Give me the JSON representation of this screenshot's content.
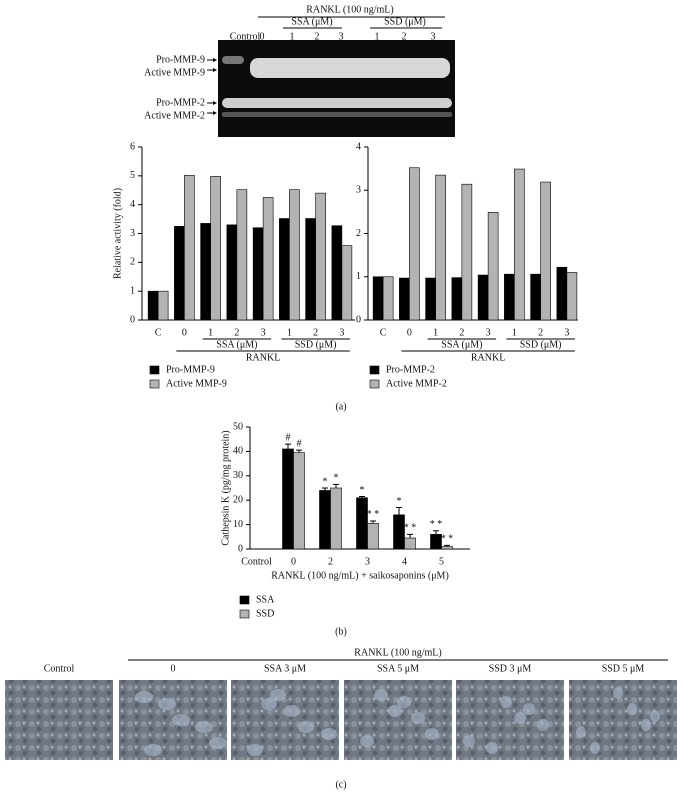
{
  "gel": {
    "title": "RANKL (100 ng/mL)",
    "control": "Control",
    "zero": "0",
    "ssa": "SSA (μM)",
    "ssd": "SSD (μM)",
    "ssa_doses": [
      "1",
      "2",
      "3"
    ],
    "ssd_doses": [
      "1",
      "2",
      "3"
    ],
    "bands": [
      "Pro-MMP-9",
      "Active MMP-9",
      "Pro-MMP-2",
      "Active MMP-2"
    ]
  },
  "chart_data": [
    {
      "type": "bar",
      "y_label": "Relative activity (fold)",
      "categories": [
        "C",
        "0",
        "1",
        "2",
        "3",
        "1",
        "2",
        "3"
      ],
      "group_labels": [
        "SSA (μM)",
        "SSD (μM)"
      ],
      "span_label": "RANKL",
      "ylim": [
        0,
        6
      ],
      "yticks": [
        0,
        1,
        2,
        3,
        4,
        5,
        6
      ],
      "series": [
        {
          "name": "Pro-MMP-9",
          "color": "#000000",
          "values": [
            1.0,
            3.25,
            3.35,
            3.3,
            3.2,
            3.52,
            3.52,
            3.27
          ]
        },
        {
          "name": "Active MMP-9",
          "color": "#b3b3b3",
          "values": [
            1.0,
            5.02,
            4.98,
            4.52,
            4.25,
            4.52,
            4.4,
            2.58
          ]
        }
      ]
    },
    {
      "type": "bar",
      "categories": [
        "C",
        "0",
        "1",
        "2",
        "3",
        "1",
        "2",
        "3"
      ],
      "group_labels": [
        "SSA (μM)",
        "SSD (μM)"
      ],
      "span_label": "RANKL",
      "ylim": [
        0,
        4
      ],
      "yticks": [
        0,
        1,
        2,
        3,
        4
      ],
      "series": [
        {
          "name": "Pro-MMP-2",
          "color": "#000000",
          "values": [
            1.0,
            0.97,
            0.97,
            0.98,
            1.04,
            1.06,
            1.06,
            1.22
          ]
        },
        {
          "name": "Active MMP-2",
          "color": "#b3b3b3",
          "values": [
            1.0,
            3.52,
            3.35,
            3.14,
            2.49,
            3.49,
            3.19,
            1.1
          ]
        }
      ]
    },
    {
      "type": "bar",
      "y_label": "Cathepsin K (pg/mg protein)",
      "x_label": "RANKL (100 ng/mL) + saikosaponins (μM)",
      "categories": [
        "Control",
        "0",
        "2",
        "3",
        "4",
        "5"
      ],
      "ylim": [
        0,
        50
      ],
      "yticks": [
        0,
        10,
        20,
        30,
        40,
        50
      ],
      "series": [
        {
          "name": "SSA",
          "color": "#000000",
          "values": [
            0,
            41,
            24,
            21,
            14,
            6
          ],
          "errors": [
            0,
            2,
            1,
            0.5,
            3,
            1.5
          ],
          "annotations": [
            null,
            "#",
            "*",
            "*",
            "*",
            "* *"
          ]
        },
        {
          "name": "SSD",
          "color": "#b3b3b3",
          "values": [
            0,
            39.5,
            25,
            10.5,
            4.5,
            1
          ],
          "errors": [
            0,
            1,
            1.5,
            1,
            1.5,
            0.5
          ],
          "annotations": [
            null,
            "#",
            "*",
            "* *",
            "* *",
            "* *"
          ]
        }
      ]
    }
  ],
  "panel_labels": [
    "(a)",
    "(b)",
    "(c)"
  ],
  "micrographs": {
    "title": "RANKL (100 ng/mL)",
    "labels": [
      "Control",
      "0",
      "SSA 3 μM",
      "SSA 5 μM",
      "SSD 3 μM",
      "SSD 5 μM"
    ]
  }
}
